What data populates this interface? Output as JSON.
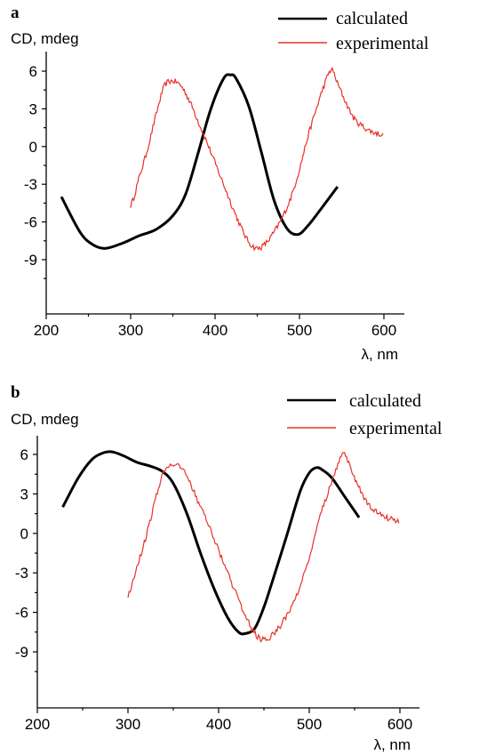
{
  "chart_data": [
    {
      "type": "line",
      "panel_label": "a",
      "ylabel": "CD, mdeg",
      "xlabel": "λ, nm",
      "xlim": [
        200,
        630
      ],
      "ylim": [
        -11,
        8
      ],
      "xticks": [
        200,
        300,
        400,
        500,
        600
      ],
      "yticks": [
        6,
        3,
        0,
        -3,
        -6,
        -9
      ],
      "legend_position": "top-right",
      "series": [
        {
          "name": "calculated",
          "color": "#000000",
          "style": "thick-smooth",
          "x": [
            218,
            240,
            255,
            270,
            290,
            310,
            330,
            350,
            365,
            380,
            395,
            410,
            418,
            425,
            440,
            455,
            470,
            485,
            498,
            510,
            525,
            545
          ],
          "y": [
            -4.0,
            -6.8,
            -7.8,
            -8.1,
            -7.7,
            -7.1,
            -6.6,
            -5.5,
            -3.8,
            -0.5,
            3.0,
            5.4,
            5.7,
            5.4,
            3.2,
            -0.5,
            -4.3,
            -6.5,
            -7.0,
            -6.3,
            -5.0,
            -3.2
          ]
        },
        {
          "name": "experimental",
          "color": "#e8302a",
          "style": "thin-noisy",
          "x": [
            300,
            310,
            320,
            330,
            340,
            350,
            360,
            370,
            380,
            390,
            400,
            410,
            420,
            430,
            440,
            450,
            460,
            470,
            480,
            490,
            500,
            510,
            520,
            530,
            538,
            545,
            555,
            565,
            575,
            585,
            595,
            600
          ],
          "y": [
            -4.7,
            -2.5,
            -0.2,
            2.5,
            4.8,
            5.2,
            4.8,
            3.6,
            2.0,
            0.4,
            -1.3,
            -3.0,
            -4.7,
            -6.3,
            -7.6,
            -8.1,
            -7.7,
            -6.8,
            -5.6,
            -4.0,
            -1.8,
            0.8,
            3.0,
            5.0,
            6.1,
            5.0,
            3.5,
            2.2,
            1.6,
            1.2,
            1.0,
            0.9
          ]
        }
      ]
    },
    {
      "type": "line",
      "panel_label": "b",
      "ylabel": "CD, mdeg",
      "xlabel": "λ, nm",
      "xlim": [
        200,
        630
      ],
      "ylim": [
        -11,
        8
      ],
      "xticks": [
        200,
        300,
        400,
        500,
        600
      ],
      "yticks": [
        6,
        3,
        0,
        -3,
        -6,
        -9
      ],
      "legend_position": "top-right",
      "series": [
        {
          "name": "calculated",
          "color": "#000000",
          "style": "thick-smooth",
          "x": [
            228,
            245,
            260,
            272,
            282,
            295,
            310,
            325,
            338,
            350,
            365,
            380,
            395,
            410,
            422,
            430,
            440,
            450,
            460,
            475,
            490,
            500,
            508,
            515,
            525,
            540,
            555
          ],
          "y": [
            2.0,
            4.2,
            5.6,
            6.1,
            6.2,
            5.9,
            5.4,
            5.1,
            4.7,
            3.8,
            1.5,
            -1.5,
            -4.2,
            -6.4,
            -7.5,
            -7.6,
            -7.2,
            -5.6,
            -3.5,
            -0.2,
            3.2,
            4.6,
            5.0,
            4.8,
            4.2,
            2.7,
            1.2
          ]
        },
        {
          "name": "experimental",
          "color": "#e8302a",
          "style": "thin-noisy",
          "x": [
            300,
            310,
            320,
            330,
            340,
            350,
            360,
            370,
            380,
            390,
            400,
            410,
            420,
            430,
            440,
            450,
            460,
            470,
            480,
            490,
            500,
            510,
            520,
            530,
            538,
            545,
            555,
            565,
            575,
            585,
            595,
            600
          ],
          "y": [
            -4.7,
            -2.5,
            -0.2,
            2.5,
            4.8,
            5.2,
            4.8,
            3.6,
            2.0,
            0.4,
            -1.3,
            -3.0,
            -4.7,
            -6.3,
            -7.6,
            -8.1,
            -7.7,
            -6.8,
            -5.6,
            -4.0,
            -1.8,
            0.8,
            3.0,
            5.0,
            6.1,
            5.0,
            3.5,
            2.2,
            1.6,
            1.2,
            1.0,
            0.9
          ]
        }
      ]
    }
  ]
}
